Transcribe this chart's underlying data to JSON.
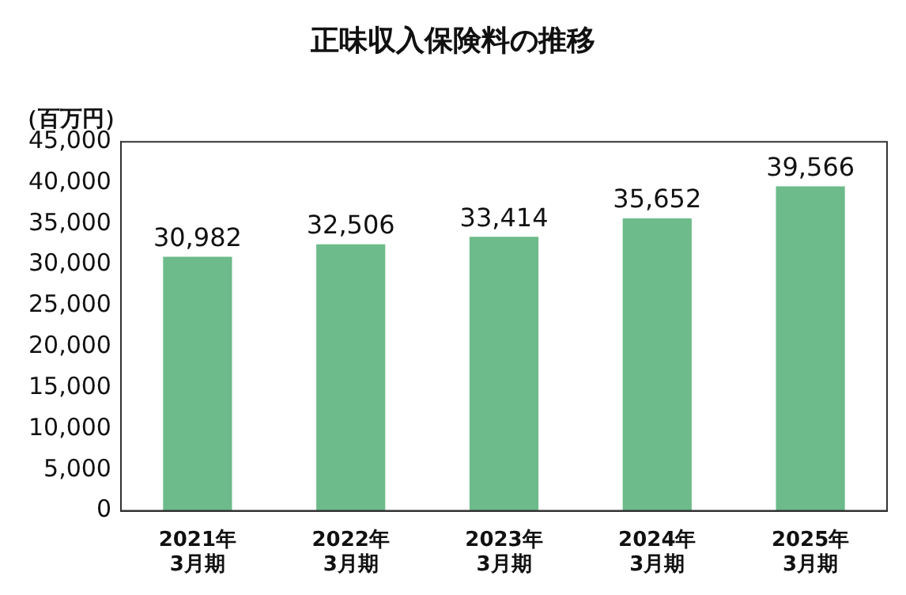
{
  "chart_data": {
    "type": "bar",
    "title": "正味収入保険料の推移",
    "ylabel": "（百万円）",
    "categories": [
      "2021年\n3月期",
      "2022年\n3月期",
      "2023年\n3月期",
      "2024年\n3月期",
      "2025年\n3月期"
    ],
    "values": [
      30982,
      32506,
      33414,
      35652,
      39566
    ],
    "value_labels": [
      "30,982",
      "32,506",
      "33,414",
      "35,652",
      "39,566"
    ],
    "color": "#6dbb8a",
    "ylim": [
      0,
      45000
    ],
    "yticks": [
      {
        "value": 0,
        "label": "0"
      },
      {
        "value": 5000,
        "label": "5,000"
      },
      {
        "value": 10000,
        "label": "10,000"
      },
      {
        "value": 15000,
        "label": "15,000"
      },
      {
        "value": 20000,
        "label": "20,000"
      },
      {
        "value": 25000,
        "label": "25,000"
      },
      {
        "value": 30000,
        "label": "30,000"
      },
      {
        "value": 35000,
        "label": "35,000"
      },
      {
        "value": 40000,
        "label": "40,000"
      },
      {
        "value": 45000,
        "label": "45,000"
      }
    ],
    "grid": false
  }
}
